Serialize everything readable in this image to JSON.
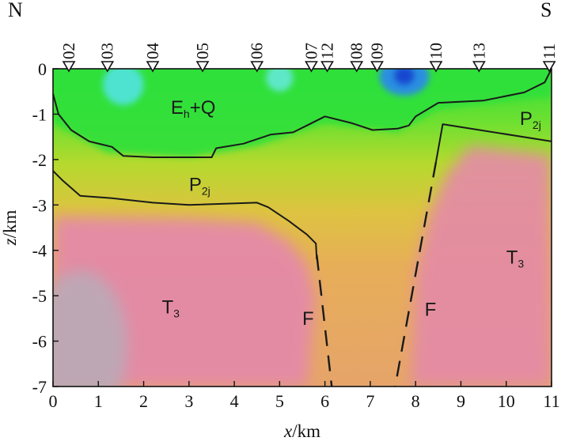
{
  "chart_data": {
    "type": "heatmap",
    "title": "",
    "corner_labels": {
      "left": "N",
      "right": "S"
    },
    "xlabel": {
      "var": "x",
      "unit": "/km"
    },
    "ylabel": {
      "var": "z",
      "unit": "/km"
    },
    "xlim": [
      0,
      11
    ],
    "ylim": [
      -7,
      0
    ],
    "x_ticks": [
      0,
      1,
      2,
      3,
      4,
      5,
      6,
      7,
      8,
      9,
      10,
      11
    ],
    "y_ticks": [
      0,
      -1,
      -2,
      -3,
      -4,
      -5,
      -6,
      -7
    ],
    "stations": [
      {
        "label": "02",
        "x": 0.35
      },
      {
        "label": "03",
        "x": 1.2
      },
      {
        "label": "04",
        "x": 2.2
      },
      {
        "label": "05",
        "x": 3.3
      },
      {
        "label": "06",
        "x": 4.5
      },
      {
        "label": "07",
        "x": 5.7
      },
      {
        "label": "12",
        "x": 6.05
      },
      {
        "label": "08",
        "x": 6.7
      },
      {
        "label": "09",
        "x": 7.15
      },
      {
        "label": "10",
        "x": 8.45
      },
      {
        "label": "13",
        "x": 9.4
      },
      {
        "label": "11",
        "x": 10.95
      }
    ],
    "boundaries": [
      {
        "name": "Eh+Q base",
        "points": [
          [
            0,
            -0.55
          ],
          [
            0.12,
            -1.0
          ],
          [
            0.4,
            -1.35
          ],
          [
            0.8,
            -1.6
          ],
          [
            1.3,
            -1.72
          ],
          [
            1.55,
            -1.92
          ],
          [
            2.2,
            -1.95
          ],
          [
            3.5,
            -1.95
          ],
          [
            3.6,
            -1.75
          ],
          [
            4.2,
            -1.65
          ],
          [
            4.8,
            -1.45
          ],
          [
            5.3,
            -1.4
          ],
          [
            5.6,
            -1.25
          ],
          [
            6.0,
            -1.05
          ],
          [
            6.6,
            -1.2
          ],
          [
            7.05,
            -1.35
          ],
          [
            7.6,
            -1.32
          ],
          [
            7.85,
            -1.25
          ],
          [
            8.0,
            -1.05
          ],
          [
            8.5,
            -0.75
          ],
          [
            9.5,
            -0.7
          ],
          [
            10.4,
            -0.52
          ],
          [
            10.85,
            -0.3
          ],
          [
            11,
            0
          ]
        ]
      },
      {
        "name": "P2j top east",
        "points": [
          [
            8.45,
            -2.05
          ],
          [
            8.6,
            -1.22
          ],
          [
            11,
            -1.6
          ]
        ]
      },
      {
        "name": "P2j base west",
        "points": [
          [
            0,
            -2.25
          ],
          [
            0.2,
            -2.45
          ],
          [
            0.6,
            -2.8
          ],
          [
            1.3,
            -2.85
          ],
          [
            2.2,
            -2.95
          ],
          [
            3.0,
            -3.0
          ],
          [
            4.5,
            -2.95
          ],
          [
            4.75,
            -3.05
          ],
          [
            5.2,
            -3.35
          ],
          [
            5.6,
            -3.65
          ],
          [
            5.8,
            -3.85
          ],
          [
            5.82,
            -4.2
          ]
        ]
      }
    ],
    "faults": [
      {
        "label": "F",
        "points": [
          [
            5.82,
            -4.1
          ],
          [
            6.15,
            -7.0
          ]
        ]
      },
      {
        "label": "F",
        "points": [
          [
            8.45,
            -2.05
          ],
          [
            7.55,
            -7.0
          ]
        ]
      }
    ],
    "unit_labels": [
      {
        "text": "E",
        "sub": "h",
        "suffix": "+Q",
        "x": 2.6,
        "z": -0.85
      },
      {
        "text": "P",
        "sub": "2j",
        "suffix": "",
        "x": 10.3,
        "z": -1.1
      },
      {
        "text": "P",
        "sub": "2j",
        "suffix": "",
        "x": 3.0,
        "z": -2.55
      },
      {
        "text": "T",
        "sub": "3",
        "suffix": "",
        "x": 10.0,
        "z": -4.15
      },
      {
        "text": "T",
        "sub": "3",
        "suffix": "",
        "x": 2.4,
        "z": -5.25
      },
      {
        "text": "F",
        "sub": "",
        "suffix": "",
        "x": 5.5,
        "z": -5.5
      },
      {
        "text": "F",
        "sub": "",
        "suffix": "",
        "x": 8.2,
        "z": -5.3
      }
    ],
    "anomalies": [
      {
        "x": 1.55,
        "z": -0.35,
        "rx": 0.45,
        "rz": 0.45,
        "color": "#4de3d0"
      },
      {
        "x": 5.0,
        "z": -0.2,
        "rx": 0.3,
        "rz": 0.3,
        "color": "#5ee8c8"
      },
      {
        "x": 7.75,
        "z": -0.17,
        "rx": 0.55,
        "rz": 0.42,
        "color": "#2a8fe0"
      },
      {
        "x": 7.75,
        "z": -0.15,
        "rx": 0.22,
        "rz": 0.2,
        "color": "#1246d0"
      }
    ],
    "colors": {
      "near_surface": "#2fe03a",
      "upper": "#b6e02a",
      "middle": "#ddc340",
      "lower": "#e6a85a",
      "deep": "#e48aa8",
      "basement_grey": "#b8acb8",
      "line": "#1a1a1a"
    }
  }
}
